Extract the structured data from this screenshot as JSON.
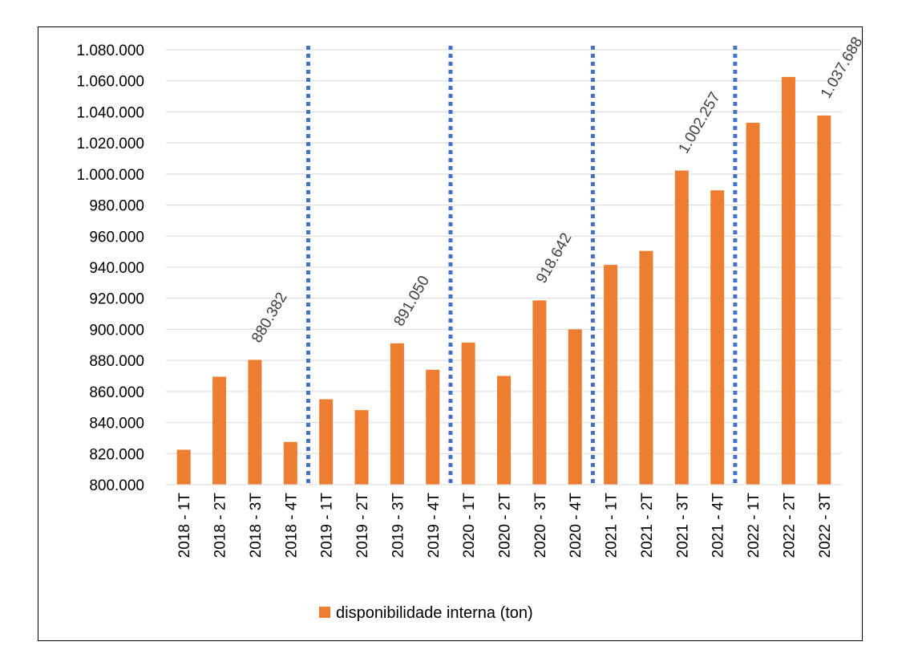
{
  "chart_data": {
    "type": "bar",
    "categories": [
      "2018 - 1T",
      "2018 - 2T",
      "2018 - 3T",
      "2018 - 4T",
      "2019 - 1T",
      "2019 - 2T",
      "2019 - 3T",
      "2019 - 4T",
      "2020 - 1T",
      "2020 - 2T",
      "2020 - 3T",
      "2020 - 4T",
      "2021 - 1T",
      "2021 - 2T",
      "2021 - 3T",
      "2021 - 4T",
      "2022 - 1T",
      "2022 - 2T",
      "2022 - 3T"
    ],
    "series": [
      {
        "name": "disponibilidade interna (ton)",
        "color": "#ED7D31",
        "values": [
          822500,
          869500,
          880382,
          827500,
          855000,
          848000,
          891050,
          874000,
          891500,
          870000,
          918642,
          900000,
          941500,
          950500,
          1002257,
          989500,
          1033000,
          1062500,
          1037688
        ]
      }
    ],
    "data_labels": [
      {
        "category": "2018 - 3T",
        "text": "880.382"
      },
      {
        "category": "2019 - 3T",
        "text": "891.050"
      },
      {
        "category": "2020 - 3T",
        "text": "918.642"
      },
      {
        "category": "2021 - 3T",
        "text": "1.002.257"
      },
      {
        "category": "2022 - 3T",
        "text": "1.037.688"
      }
    ],
    "separators_after": [
      "2018 - 4T",
      "2019 - 4T",
      "2020 - 4T",
      "2021 - 4T"
    ],
    "separator_color": "#4472C4",
    "ylim": [
      800000,
      1080000
    ],
    "yticks": [
      {
        "value": 800000,
        "label": "800.000"
      },
      {
        "value": 820000,
        "label": "820.000"
      },
      {
        "value": 840000,
        "label": "840.000"
      },
      {
        "value": 860000,
        "label": "860.000"
      },
      {
        "value": 880000,
        "label": "880.000"
      },
      {
        "value": 900000,
        "label": "900.000"
      },
      {
        "value": 920000,
        "label": "920.000"
      },
      {
        "value": 940000,
        "label": "940.000"
      },
      {
        "value": 960000,
        "label": "960.000"
      },
      {
        "value": 980000,
        "label": "980.000"
      },
      {
        "value": 1000000,
        "label": "1.000.000"
      },
      {
        "value": 1020000,
        "label": "1.020.000"
      },
      {
        "value": 1040000,
        "label": "1.040.000"
      },
      {
        "value": 1060000,
        "label": "1.060.000"
      },
      {
        "value": 1080000,
        "label": "1.080.000"
      }
    ],
    "grid": true,
    "legend": {
      "position": "bottom",
      "label": "disponibilidade interna (ton)"
    },
    "title": "",
    "xlabel": "",
    "ylabel": ""
  }
}
